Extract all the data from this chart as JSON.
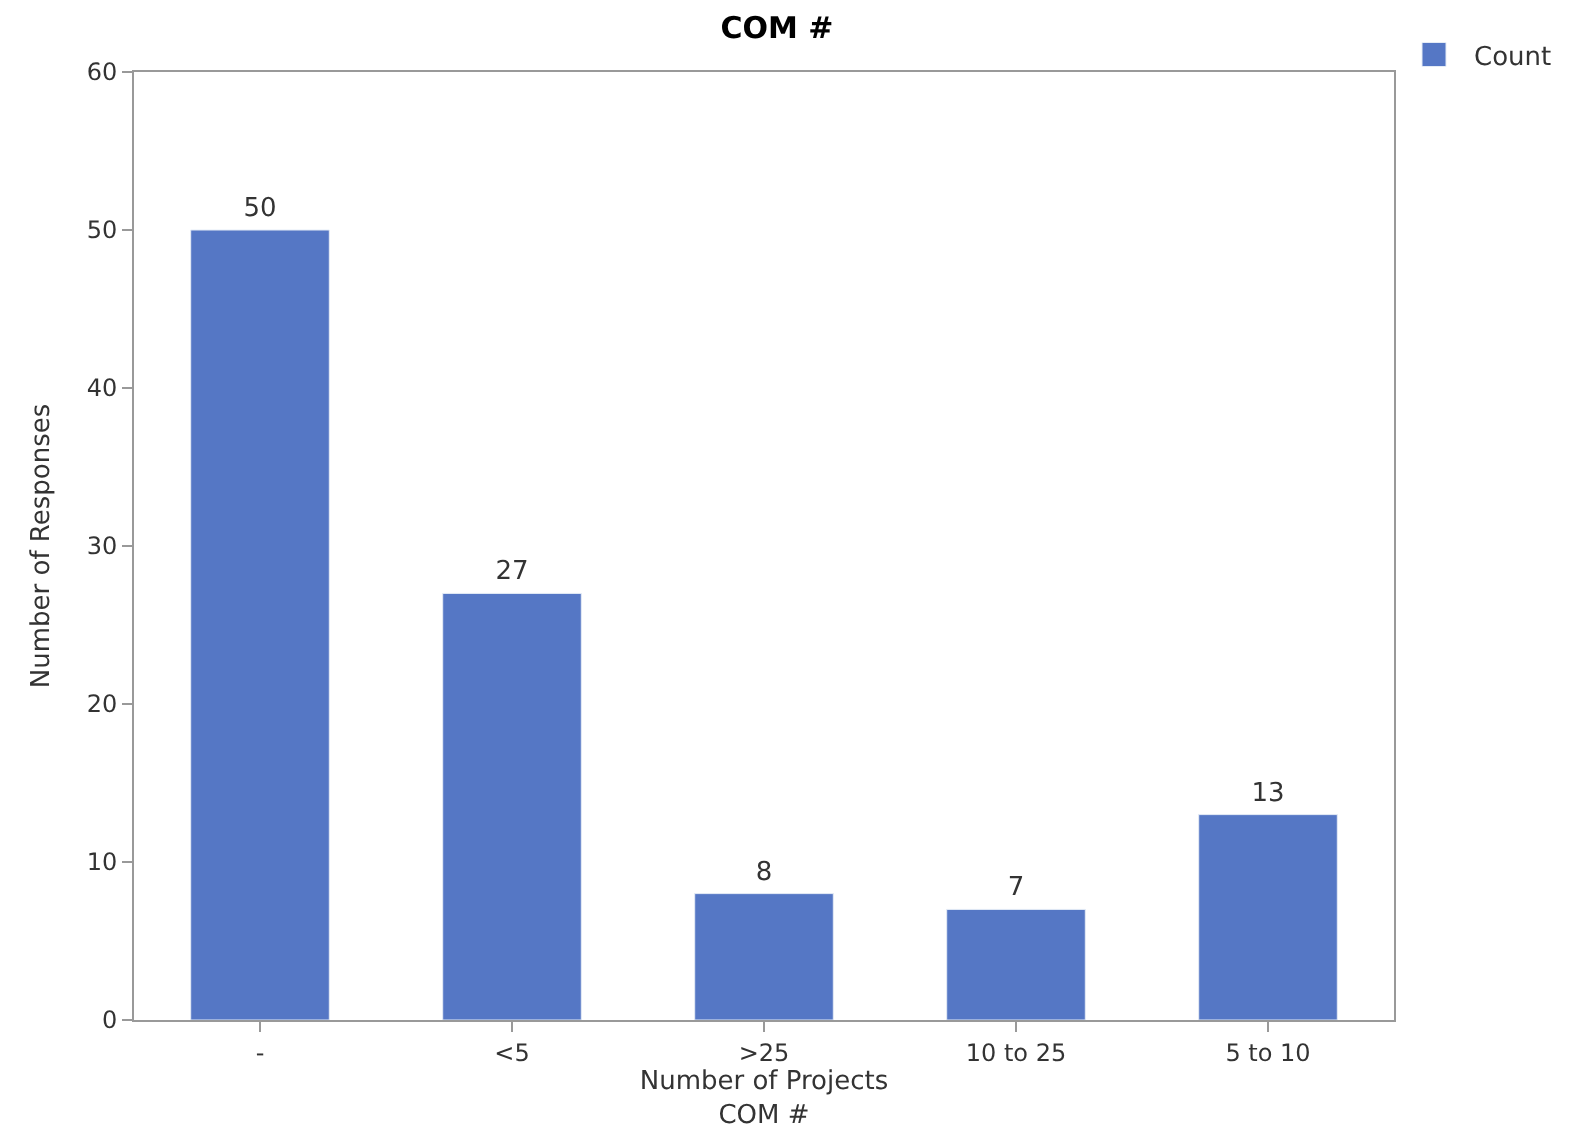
{
  "chart_data": {
    "type": "bar",
    "title": "COM #",
    "xlabel": "Number of Projects\nCOM #",
    "ylabel": "Number of Responses",
    "categories": [
      "-",
      "<5",
      ">25",
      "10 to 25",
      "5 to 10"
    ],
    "series": [
      {
        "name": "Count",
        "color": "#5577c5",
        "values": [
          50,
          27,
          8,
          7,
          13
        ]
      }
    ],
    "ylim": [
      0,
      60
    ],
    "yticks": [
      0,
      10,
      20,
      30,
      40,
      50,
      60
    ],
    "legend": "top right",
    "data_labels": true
  }
}
